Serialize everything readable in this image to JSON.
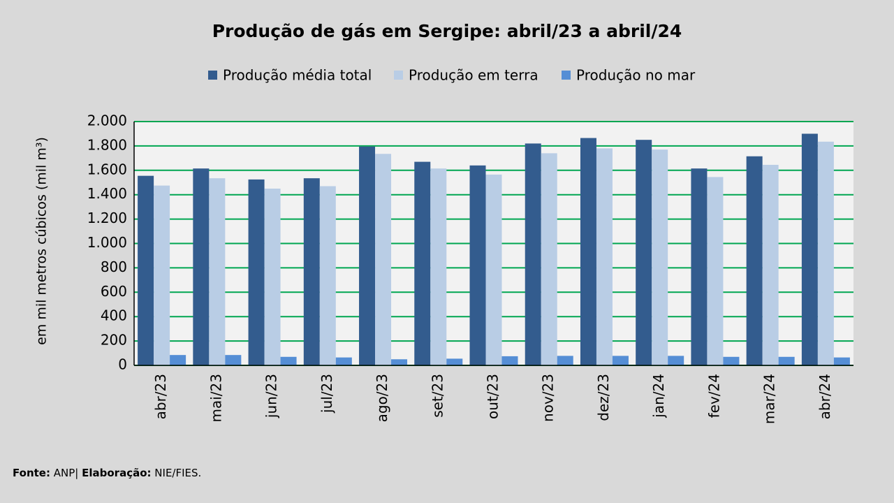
{
  "chart_data": {
    "type": "bar",
    "title": "Produção de gás em Sergipe: abril/23 a abril/24",
    "y_label": "em mil metros cúbicos (mil m³)",
    "categories": [
      "abr/23",
      "mai/23",
      "jun/23",
      "jul/23",
      "ago/23",
      "set/23",
      "out/23",
      "nov/23",
      "dez/23",
      "jan/24",
      "fev/24",
      "mar/24",
      "abr/24"
    ],
    "series": [
      {
        "name": "Produção média total",
        "color": "#335c8e",
        "values": [
          1555,
          1615,
          1525,
          1535,
          1795,
          1670,
          1640,
          1820,
          1865,
          1850,
          1615,
          1715,
          1900
        ]
      },
      {
        "name": "Produção em terra",
        "color": "#b9cde5",
        "values": [
          1475,
          1535,
          1450,
          1470,
          1735,
          1615,
          1565,
          1740,
          1780,
          1770,
          1545,
          1645,
          1835
        ]
      },
      {
        "name": "Produção no mar",
        "color": "#558ed5",
        "values": [
          85,
          85,
          70,
          65,
          50,
          55,
          75,
          78,
          78,
          78,
          70,
          70,
          65
        ]
      }
    ],
    "ylim": [
      0,
      2000
    ],
    "yticks": [
      0,
      200,
      400,
      600,
      800,
      {
        "value": 1000,
        "label": "1.000"
      },
      {
        "value": 1200,
        "label": "1.200"
      },
      {
        "value": 1400,
        "label": "1.400"
      },
      {
        "value": 1600,
        "label": "1.600"
      },
      {
        "value": 1800,
        "label": "1.800"
      },
      {
        "value": 2000,
        "label": "2.000"
      }
    ],
    "grid": true,
    "grid_color": "#00a651",
    "legend": "top",
    "footer": {
      "source_label": "Fonte:",
      "source": "ANP|",
      "credit_label": "Elaboração:",
      "credit": "NIE/FIES."
    }
  }
}
